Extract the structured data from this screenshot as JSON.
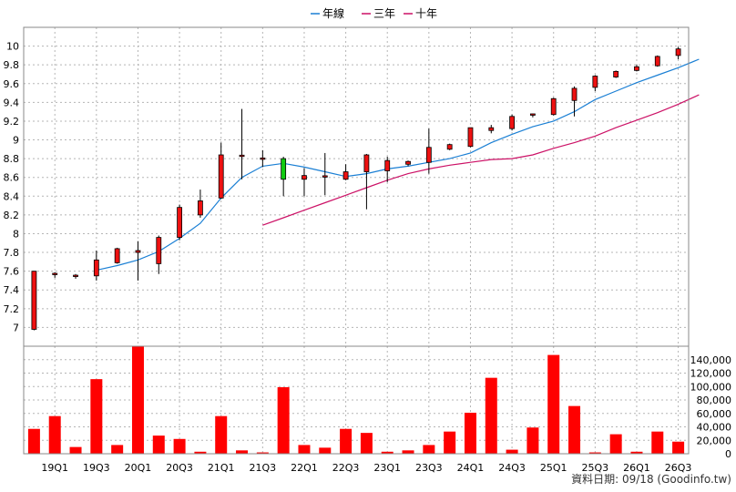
{
  "chart_data": {
    "type": "candlestick",
    "legend": {
      "placement": "top-center",
      "items": [
        {
          "name": "年線",
          "color": "#1a7fd4"
        },
        {
          "name": "三年",
          "color": "#cc1166"
        },
        {
          "name": "十年",
          "color": "#cc1166"
        }
      ]
    },
    "x_tick_labels": [
      "19Q1",
      "19Q3",
      "20Q1",
      "20Q3",
      "21Q1",
      "21Q3",
      "22Q1",
      "22Q3",
      "23Q1",
      "23Q3",
      "24Q1",
      "24Q3",
      "25Q1",
      "25Q3",
      "26Q1",
      "26Q3"
    ],
    "x_tick_start_index": 1,
    "x_tick_step": 2,
    "price_axis": {
      "range": [
        6.8,
        10.2
      ],
      "ticks": [
        "7",
        "7.2",
        "7.4",
        "7.6",
        "7.8",
        "8",
        "8.2",
        "8.4",
        "8.6",
        "8.8",
        "9",
        "9.2",
        "9.4",
        "9.6",
        "9.8",
        "10"
      ],
      "grid": true
    },
    "volume_axis": {
      "range": [
        0,
        160000
      ],
      "ticks": [
        "0",
        "20,000",
        "40,000",
        "60,000",
        "80,000",
        "100,000",
        "120,000",
        "140,000"
      ]
    },
    "up_color": "#ee1111",
    "down_color": "#11cc11",
    "volume_color": "#ff0000",
    "candles": [
      {
        "open": 6.98,
        "high": 7.6,
        "low": 6.97,
        "close": 7.6
      },
      {
        "open": 7.56,
        "high": 7.59,
        "low": 7.53,
        "close": 7.57
      },
      {
        "open": 7.55,
        "high": 7.57,
        "low": 7.52,
        "close": 7.55
      },
      {
        "open": 7.55,
        "high": 7.82,
        "low": 7.5,
        "close": 7.72
      },
      {
        "open": 7.69,
        "high": 7.85,
        "low": 7.68,
        "close": 7.84
      },
      {
        "open": 7.8,
        "high": 7.92,
        "low": 7.5,
        "close": 7.82
      },
      {
        "open": 7.68,
        "high": 7.98,
        "low": 7.57,
        "close": 7.96
      },
      {
        "open": 7.96,
        "high": 8.31,
        "low": 7.93,
        "close": 8.28
      },
      {
        "open": 8.2,
        "high": 8.47,
        "low": 8.17,
        "close": 8.35
      },
      {
        "open": 8.38,
        "high": 8.97,
        "low": 8.37,
        "close": 8.84
      },
      {
        "open": 8.83,
        "high": 9.33,
        "low": 8.58,
        "close": 8.83
      },
      {
        "open": 8.8,
        "high": 8.89,
        "low": 8.71,
        "close": 8.8
      },
      {
        "open": 8.8,
        "high": 8.82,
        "low": 8.4,
        "close": 8.58
      },
      {
        "open": 8.58,
        "high": 8.7,
        "low": 8.4,
        "close": 8.62
      },
      {
        "open": 8.6,
        "high": 8.86,
        "low": 8.41,
        "close": 8.61
      },
      {
        "open": 8.58,
        "high": 8.74,
        "low": 8.57,
        "close": 8.66
      },
      {
        "open": 8.66,
        "high": 8.85,
        "low": 8.26,
        "close": 8.84
      },
      {
        "open": 8.67,
        "high": 8.82,
        "low": 8.55,
        "close": 8.78
      },
      {
        "open": 8.74,
        "high": 8.78,
        "low": 8.72,
        "close": 8.77
      },
      {
        "open": 8.76,
        "high": 9.12,
        "low": 8.64,
        "close": 8.92
      },
      {
        "open": 8.9,
        "high": 8.96,
        "low": 8.89,
        "close": 8.95
      },
      {
        "open": 8.93,
        "high": 9.13,
        "low": 8.92,
        "close": 9.13
      },
      {
        "open": 9.1,
        "high": 9.16,
        "low": 9.07,
        "close": 9.13
      },
      {
        "open": 9.12,
        "high": 9.27,
        "low": 9.1,
        "close": 9.25
      },
      {
        "open": 9.26,
        "high": 9.28,
        "low": 9.24,
        "close": 9.27
      },
      {
        "open": 9.27,
        "high": 9.45,
        "low": 9.26,
        "close": 9.44
      },
      {
        "open": 9.42,
        "high": 9.57,
        "low": 9.25,
        "close": 9.55
      },
      {
        "open": 9.56,
        "high": 9.69,
        "low": 9.52,
        "close": 9.68
      },
      {
        "open": 9.67,
        "high": 9.74,
        "low": 9.66,
        "close": 9.73
      },
      {
        "open": 9.74,
        "high": 9.8,
        "low": 9.73,
        "close": 9.78
      },
      {
        "open": 9.79,
        "high": 9.9,
        "low": 9.78,
        "close": 9.89
      },
      {
        "open": 9.9,
        "high": 9.99,
        "low": 9.86,
        "close": 9.97
      }
    ],
    "volumes": [
      37000,
      56000,
      10000,
      111000,
      13000,
      160000,
      27000,
      22000,
      3000,
      56000,
      5000,
      2000,
      99000,
      13000,
      9000,
      37000,
      31000,
      3000,
      5000,
      13000,
      33000,
      61000,
      113000,
      6000,
      39000,
      147000,
      71000,
      2000,
      29000,
      3000,
      33000,
      18000
    ],
    "annual_line": {
      "start_index": 3,
      "values": [
        7.61,
        7.66,
        7.72,
        7.81,
        7.95,
        8.11,
        8.38,
        8.6,
        8.72,
        8.75,
        8.71,
        8.66,
        8.61,
        8.64,
        8.69,
        8.72,
        8.76,
        8.8,
        8.86,
        8.97,
        9.06,
        9.14,
        9.2,
        9.3,
        9.43,
        9.52,
        9.61,
        9.69,
        9.77,
        9.86
      ]
    },
    "three_year_line": {
      "start_index": 11,
      "values": [
        8.09,
        8.17,
        8.25,
        8.33,
        8.41,
        8.49,
        8.57,
        8.64,
        8.69,
        8.73,
        8.76,
        8.79,
        8.8,
        8.84,
        8.91,
        8.97,
        9.04,
        9.13,
        9.21,
        9.29,
        9.38,
        9.48
      ]
    }
  },
  "footer": "資料日期: 09/18 (Goodinfo.tw)"
}
